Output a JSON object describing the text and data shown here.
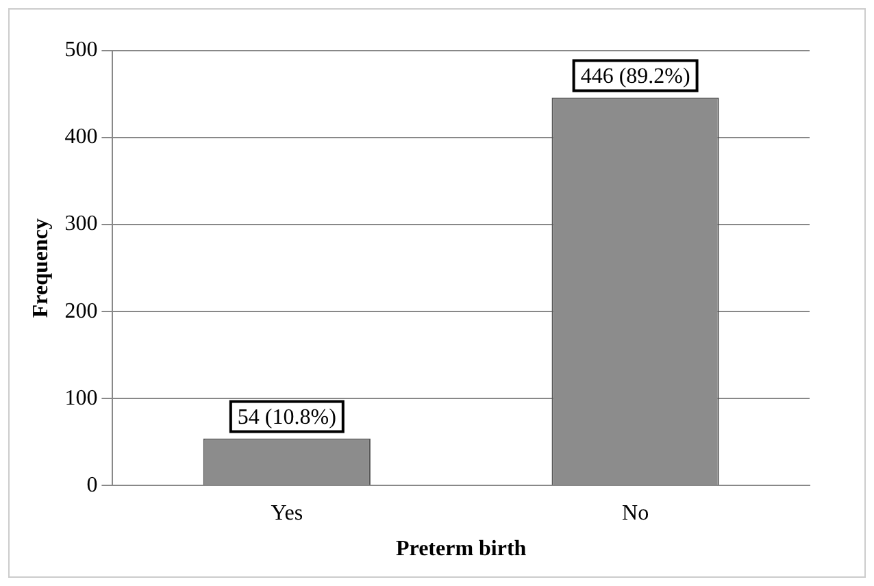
{
  "chart_data": {
    "type": "bar",
    "xlabel": "Preterm birth",
    "ylabel": "Frequency",
    "categories": [
      "Yes",
      "No"
    ],
    "values": [
      54,
      446
    ],
    "value_labels": [
      "54 (10.8%)",
      "446 (89.2%)"
    ],
    "color": "#8c8c8c",
    "ylim": [
      0,
      500
    ],
    "yticks": [
      0,
      100,
      200,
      300,
      400,
      500
    ],
    "grid": "y",
    "legend": false
  }
}
